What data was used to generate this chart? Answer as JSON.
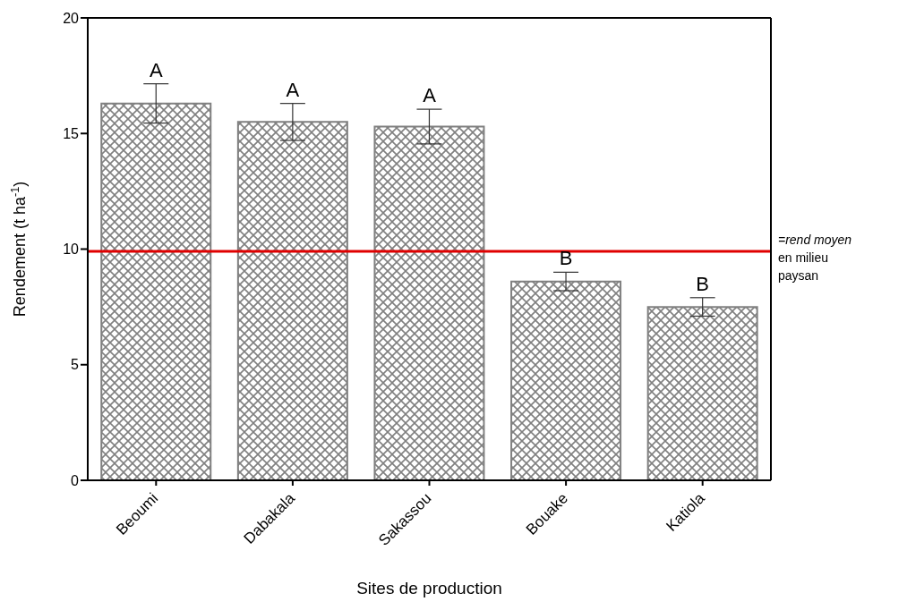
{
  "chart_data": {
    "type": "bar",
    "xlabel": "Sites de production",
    "ylabel": "Rendement (t ha$^{-1}$)",
    "categories": [
      "Beoumi",
      "Dabakala",
      "Sakassou",
      "Bouake",
      "Katiola"
    ],
    "values": [
      16.3,
      15.5,
      15.3,
      8.6,
      7.5
    ],
    "errors": [
      0.85,
      0.8,
      0.75,
      0.4,
      0.4
    ],
    "color": "#808080",
    "ylim": [
      0,
      20
    ],
    "yticks": [
      0,
      5,
      10,
      15,
      20
    ],
    "grid": false,
    "ref_lines": [
      {
        "axis": "y",
        "value": 9.9,
        "label": "=rend moyen en milieu paysan",
        "color": "#e00000",
        "line_style": "solid"
      }
    ],
    "annotations": [
      "A",
      "A",
      "A",
      "B",
      "B"
    ]
  }
}
